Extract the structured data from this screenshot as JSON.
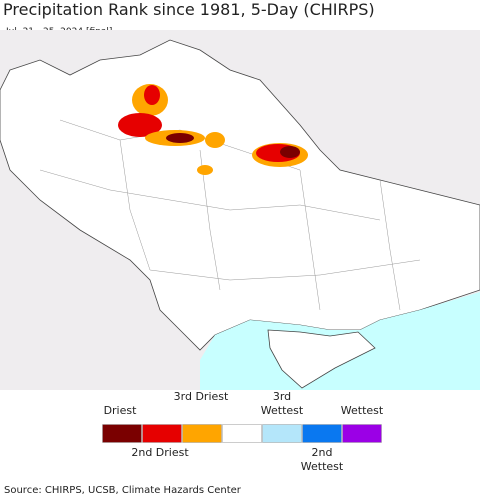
{
  "title": "Precipitation Rank since 1981, 5-Day (CHIRPS)",
  "subtitle": "Jul. 21 - 25, 2024 [final]",
  "legend": {
    "colors": [
      "#7a0000",
      "#e60000",
      "#ffa500",
      "#ffffff",
      "#b4e6fa",
      "#0a78f0",
      "#9b00e6"
    ],
    "labels": [
      "Driest",
      "2nd Driest",
      "3rd Driest",
      "3rd Wettest",
      "2nd Wettest",
      "Wettest"
    ]
  },
  "source": "Source: CHIRPS, UCSB, Climate Hazards Center"
}
